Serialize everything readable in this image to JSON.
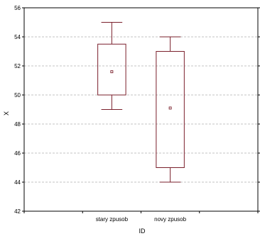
{
  "chart_data": {
    "type": "boxplot",
    "xlabel": "ID",
    "ylabel": "X",
    "ylim": [
      42,
      56
    ],
    "yticks": [
      42,
      44,
      46,
      48,
      50,
      52,
      54,
      56
    ],
    "grid": true,
    "categories": [
      "stary zpusob",
      "novy zpusob"
    ],
    "boxes": [
      {
        "category": "stary zpusob",
        "whisker_low": 49,
        "q1": 50,
        "median_marker": 51.6,
        "q3": 53.5,
        "whisker_high": 55
      },
      {
        "category": "novy zpusob",
        "whisker_low": 44,
        "q1": 45,
        "median_marker": 49.1,
        "q3": 53,
        "whisker_high": 54
      }
    ],
    "colors": {
      "box": "#7a1f2b",
      "grid": "#b0b0b0",
      "axis": "#000000"
    }
  }
}
